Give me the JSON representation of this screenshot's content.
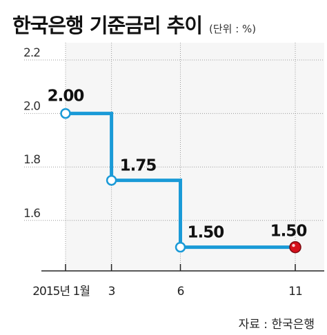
{
  "header": {
    "title": "한국은행 기준금리 추이",
    "unit": "(단위 : %)"
  },
  "source": "자료 : 한국은행",
  "colors": {
    "line": "#1a9ad7",
    "marker_fill": "#ffffff",
    "last_marker": "#d6101b",
    "plot_shade": "#eaeaea",
    "grid": "#999999"
  },
  "chart_data": {
    "type": "line",
    "step": true,
    "title": "한국은행 기준금리 추이",
    "unit": "(단위 : %)",
    "xlabel": "",
    "ylabel": "",
    "ylim": [
      1.4,
      2.2
    ],
    "y_ticks": [
      "2.2",
      "2.0",
      "1.8",
      "1.6"
    ],
    "y_tick_values": [
      2.2,
      2.0,
      1.8,
      1.6
    ],
    "categories": [
      "2015년 1월",
      "3",
      "6",
      "11"
    ],
    "x": [
      1,
      3,
      6,
      11
    ],
    "values": [
      2.0,
      1.75,
      1.5,
      1.5
    ],
    "data_labels": [
      "2.00",
      "1.75",
      "1.50",
      "1.50"
    ],
    "grid": true,
    "highlight_last": true
  }
}
